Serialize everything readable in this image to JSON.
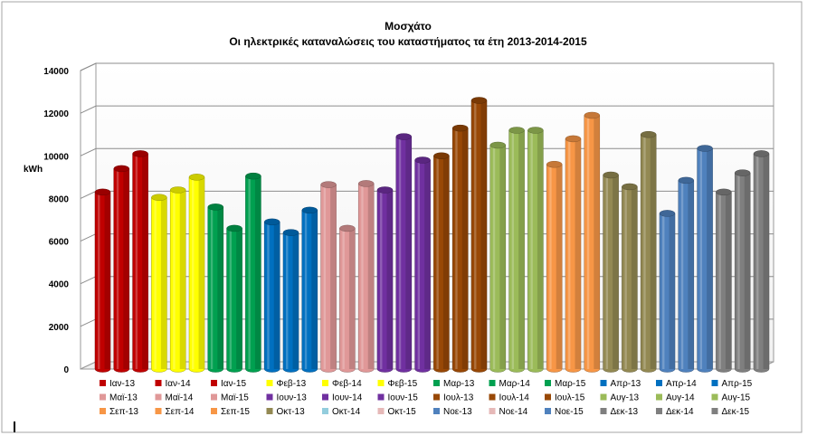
{
  "chart_data": {
    "type": "bar",
    "title": "Μοσχάτο",
    "subtitle": "Οι ηλεκτρικές καταναλώσεις του καταστήματος τα έτη 2013-2014-2015",
    "ylabel": "kWh",
    "xlabel": "",
    "ylim": [
      0,
      14000
    ],
    "yticks": [
      "0",
      "2000",
      "4000",
      "6000",
      "8000",
      "10000",
      "12000",
      "14000"
    ],
    "grid": true,
    "legend_position": "bottom",
    "months": [
      {
        "color": "#c00000",
        "bars": [
          {
            "label": "Ιαν-13",
            "value": 8300
          },
          {
            "label": "Ιαν-14",
            "value": 9400
          },
          {
            "label": "Ιαν-15",
            "value": 10100
          }
        ]
      },
      {
        "color": "#ffff00",
        "bars": [
          {
            "label": "Φεβ-13",
            "value": 8050
          },
          {
            "label": "Φεβ-14",
            "value": 8400
          },
          {
            "label": "Φεβ-15",
            "value": 9000
          }
        ]
      },
      {
        "color": "#00a050",
        "bars": [
          {
            "label": "Μαρ-13",
            "value": 7600
          },
          {
            "label": "Μαρ-14",
            "value": 6600
          },
          {
            "label": "Μαρ-15",
            "value": 9050
          }
        ]
      },
      {
        "color": "#0070c0",
        "bars": [
          {
            "label": "Απρ-13",
            "value": 6900
          },
          {
            "label": "Απρ-14",
            "value": 6400
          },
          {
            "label": "Απρ-15",
            "value": 7450
          }
        ]
      },
      {
        "color": "#e09898",
        "bars": [
          {
            "label": "Μαϊ-13",
            "value": 8650
          },
          {
            "label": "Μαϊ-14",
            "value": 6600
          },
          {
            "label": "Μαϊ-15",
            "value": 8700
          }
        ]
      },
      {
        "color": "#7030a0",
        "bars": [
          {
            "label": "Ιουν-13",
            "value": 8400
          },
          {
            "label": "Ιουν-14",
            "value": 10900
          },
          {
            "label": "Ιουν-15",
            "value": 9800
          }
        ]
      },
      {
        "color": "#984806",
        "bars": [
          {
            "label": "Ιουλ-13",
            "value": 10000
          },
          {
            "label": "Ιουλ-14",
            "value": 11300
          },
          {
            "label": "Ιουλ-15",
            "value": 12600
          }
        ]
      },
      {
        "color": "#9bbb59",
        "bars": [
          {
            "label": "Αυγ-13",
            "value": 10500
          },
          {
            "label": "Αυγ-14",
            "value": 11200
          },
          {
            "label": "Αυγ-15",
            "value": 11200
          }
        ]
      },
      {
        "color": "#f79646",
        "bars": [
          {
            "label": "Σεπ-13",
            "value": 9600
          },
          {
            "label": "Σεπ-14",
            "value": 10800
          },
          {
            "label": "Σεπ-15",
            "value": 11900
          }
        ]
      },
      {
        "color": "#938953",
        "bars": [
          {
            "label": "Οκτ-13",
            "value": 9100
          },
          {
            "label": "Οκτ-14",
            "value": 8550
          },
          {
            "label": "Οκτ-15",
            "value": 11000
          }
        ]
      },
      {
        "color": "#4f81bd",
        "bars": [
          {
            "label": "Νοε-13",
            "value": 7300
          },
          {
            "label": "Νοε-14",
            "value": 8850
          },
          {
            "label": "Νοε-15",
            "value": 10350
          }
        ]
      },
      {
        "color": "#7f7f7f",
        "bars": [
          {
            "label": "Δεκ-13",
            "value": 8300
          },
          {
            "label": "Δεκ-14",
            "value": 9200
          },
          {
            "label": "Δεκ-15",
            "value": 10100
          }
        ]
      }
    ],
    "legend": [
      {
        "label": "Ιαν-13",
        "color": "#c00000"
      },
      {
        "label": "Ιαν-14",
        "color": "#c00000"
      },
      {
        "label": "Ιαν-15",
        "color": "#c00000"
      },
      {
        "label": "Φεβ-13",
        "color": "#ffff00"
      },
      {
        "label": "Φεβ-14",
        "color": "#ffff00"
      },
      {
        "label": "Φεβ-15",
        "color": "#ffff00"
      },
      {
        "label": "Μαρ-13",
        "color": "#00a050"
      },
      {
        "label": "Μαρ-14",
        "color": "#00a050"
      },
      {
        "label": "Μαρ-15",
        "color": "#00a050"
      },
      {
        "label": "Απρ-13",
        "color": "#0070c0"
      },
      {
        "label": "Απρ-14",
        "color": "#0070c0"
      },
      {
        "label": "Απρ-15",
        "color": "#0070c0"
      },
      {
        "label": "Μαϊ-13",
        "color": "#e09898"
      },
      {
        "label": "Μαϊ-14",
        "color": "#e09898"
      },
      {
        "label": "Μαϊ-15",
        "color": "#e09898"
      },
      {
        "label": "Ιουν-13",
        "color": "#7030a0"
      },
      {
        "label": "Ιουν-14",
        "color": "#7030a0"
      },
      {
        "label": "Ιουν-15",
        "color": "#7030a0"
      },
      {
        "label": "Ιουλ-13",
        "color": "#984806"
      },
      {
        "label": "Ιουλ-14",
        "color": "#984806"
      },
      {
        "label": "Ιουλ-15",
        "color": "#984806"
      },
      {
        "label": "Αυγ-13",
        "color": "#9bbb59"
      },
      {
        "label": "Αυγ-14",
        "color": "#9bbb59"
      },
      {
        "label": "Αυγ-15",
        "color": "#9bbb59"
      },
      {
        "label": "Σεπ-13",
        "color": "#f79646"
      },
      {
        "label": "Σεπ-14",
        "color": "#f79646"
      },
      {
        "label": "Σεπ-15",
        "color": "#f79646"
      },
      {
        "label": "Οκτ-13",
        "color": "#938953"
      },
      {
        "label": "Οκτ-14",
        "color": "#93cddd"
      },
      {
        "label": "Οκτ-15",
        "color": "#e6b9b8"
      },
      {
        "label": "Νοε-13",
        "color": "#4f81bd"
      },
      {
        "label": "Νοε-14",
        "color": "#e6b9b8"
      },
      {
        "label": "Νοε-15",
        "color": "#4f81bd"
      },
      {
        "label": "Δεκ-13",
        "color": "#7f7f7f"
      },
      {
        "label": "Δεκ-14",
        "color": "#7f7f7f"
      },
      {
        "label": "Δεκ-15",
        "color": "#7f7f7f"
      }
    ]
  }
}
